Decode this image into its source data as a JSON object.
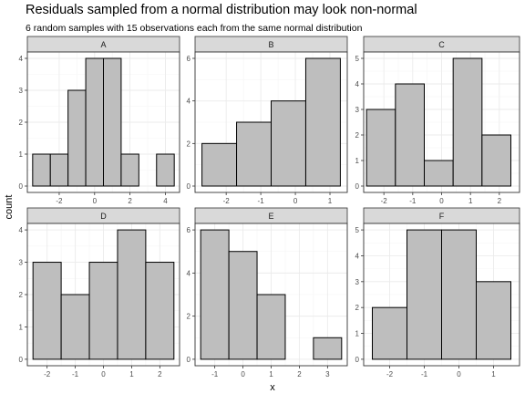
{
  "chart_data": {
    "type": "bar",
    "title": "Residuals sampled from a normal distribution may look non-normal",
    "subtitle": "6 random samples with 15 observations each from the same normal distribution",
    "xlabel": "x",
    "ylabel": "count",
    "grid": true,
    "panels": [
      {
        "label": "A",
        "bars": [
          {
            "x": -3.0,
            "count": 1
          },
          {
            "x": -2.0,
            "count": 1
          },
          {
            "x": -1.0,
            "count": 3
          },
          {
            "x": 0.0,
            "count": 4
          },
          {
            "x": 1.0,
            "count": 4
          },
          {
            "x": 2.0,
            "count": 1
          },
          {
            "x": 3.0,
            "count": 0
          },
          {
            "x": 4.0,
            "count": 1
          }
        ],
        "bin_width": 1.0,
        "xlim": [
          -3.8,
          4.8
        ],
        "ylim": [
          -0.2,
          4.2
        ],
        "xticks": [
          -2,
          0,
          2,
          4
        ],
        "yticks": [
          0,
          1,
          2,
          3,
          4
        ]
      },
      {
        "label": "B",
        "bars": [
          {
            "x": -2.2,
            "count": 2
          },
          {
            "x": -1.2,
            "count": 3
          },
          {
            "x": -0.2,
            "count": 4
          },
          {
            "x": 0.8,
            "count": 6
          }
        ],
        "bin_width": 1.0,
        "xlim": [
          -2.9,
          1.5
        ],
        "ylim": [
          -0.3,
          6.3
        ],
        "xticks": [
          -2,
          -1,
          0,
          1
        ],
        "yticks": [
          0,
          2,
          4,
          6
        ]
      },
      {
        "label": "C",
        "bars": [
          {
            "x": -2.1,
            "count": 3
          },
          {
            "x": -1.1,
            "count": 4
          },
          {
            "x": -0.1,
            "count": 1
          },
          {
            "x": 0.9,
            "count": 5
          },
          {
            "x": 1.9,
            "count": 2
          }
        ],
        "bin_width": 1.0,
        "xlim": [
          -2.7,
          2.7
        ],
        "ylim": [
          -0.25,
          5.25
        ],
        "xticks": [
          -2,
          -1,
          0,
          1,
          2
        ],
        "yticks": [
          0,
          1,
          2,
          3,
          4,
          5
        ]
      },
      {
        "label": "D",
        "bars": [
          {
            "x": -2.0,
            "count": 3
          },
          {
            "x": -1.0,
            "count": 2
          },
          {
            "x": 0.0,
            "count": 3
          },
          {
            "x": 1.0,
            "count": 4
          },
          {
            "x": 2.0,
            "count": 3
          }
        ],
        "bin_width": 1.0,
        "xlim": [
          -2.7,
          2.7
        ],
        "ylim": [
          -0.2,
          4.2
        ],
        "xticks": [
          -2,
          -1,
          0,
          1,
          2
        ],
        "yticks": [
          0,
          1,
          2,
          3,
          4
        ]
      },
      {
        "label": "E",
        "bars": [
          {
            "x": -1.0,
            "count": 6
          },
          {
            "x": 0.0,
            "count": 5
          },
          {
            "x": 1.0,
            "count": 3
          },
          {
            "x": 2.0,
            "count": 0
          },
          {
            "x": 3.0,
            "count": 1
          }
        ],
        "bin_width": 1.0,
        "xlim": [
          -1.7,
          3.7
        ],
        "ylim": [
          -0.3,
          6.3
        ],
        "xticks": [
          -1,
          0,
          1,
          2,
          3
        ],
        "yticks": [
          0,
          2,
          4,
          6
        ]
      },
      {
        "label": "F",
        "bars": [
          {
            "x": -2.0,
            "count": 2
          },
          {
            "x": -1.0,
            "count": 5
          },
          {
            "x": 0.0,
            "count": 5
          },
          {
            "x": 1.0,
            "count": 3
          }
        ],
        "bin_width": 1.0,
        "xlim": [
          -2.75,
          1.75
        ],
        "ylim": [
          -0.25,
          5.25
        ],
        "xticks": [
          -2,
          -1,
          0,
          1
        ],
        "yticks": [
          0,
          1,
          2,
          3,
          4,
          5
        ]
      }
    ]
  }
}
